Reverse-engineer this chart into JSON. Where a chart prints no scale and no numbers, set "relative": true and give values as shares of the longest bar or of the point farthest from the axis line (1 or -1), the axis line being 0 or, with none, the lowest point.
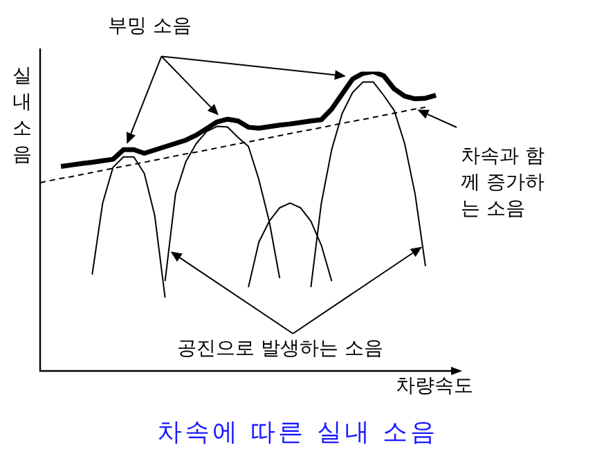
{
  "chart_data": {
    "type": "line",
    "title": "차속에 따른 실내 소음",
    "xlabel": "차량속도",
    "ylabel": "실내소음",
    "relative": true,
    "marker": "none",
    "annotations": [
      "부밍 소음",
      "차속과 함께 증가하는 소음",
      "공진으로 발생하는 소음"
    ],
    "categories": [
      null,
      null,
      null,
      null,
      null,
      null,
      null,
      null,
      null,
      null,
      null,
      null,
      null,
      null,
      null,
      null,
      null,
      null,
      null,
      null,
      null,
      null,
      null,
      null,
      null,
      null,
      null,
      null,
      null,
      null,
      null,
      null,
      null,
      null,
      null,
      null,
      null,
      null,
      null
    ],
    "series": [
      {
        "color": "#000000",
        "line_style": "solid",
        "values": [
          null,
          null,
          0.683,
          0.688,
          0.693,
          0.697,
          0.702,
          0.707,
          0.739,
          0.739,
          0.727,
          0.738,
          0.749,
          0.76,
          0.771,
          0.788,
          0.81,
          0.832,
          0.841,
          0.835,
          0.814,
          0.811,
          0.816,
          0.821,
          0.825,
          0.83,
          0.835,
          0.839,
          0.875,
          0.925,
          0.975,
          0.994,
          1,
          0.986,
          0.942,
          0.918,
          0.909,
          0.911,
          0.921
        ]
      },
      {
        "color": "#000000",
        "line_style": "dashed",
        "values": [
          0.629,
          0.636,
          0.643,
          0.649,
          0.656,
          0.663,
          0.67,
          0.677,
          0.684,
          0.69,
          0.697,
          0.704,
          0.711,
          0.718,
          0.725,
          0.731,
          0.738,
          0.745,
          0.752,
          0.759,
          0.765,
          0.772,
          0.779,
          0.786,
          0.793,
          0.8,
          0.806,
          0.813,
          0.82,
          0.827,
          0.834,
          0.84,
          0.847,
          0.854,
          0.861,
          0.868,
          0.875,
          0.881,
          null
        ]
      },
      {
        "color": "#000000",
        "line_style": "solid",
        "values": [
          null,
          null,
          null,
          null,
          null,
          0.322,
          0.56,
          0.68,
          0.715,
          0.715,
          0.66,
          0.52,
          0.245,
          null,
          null,
          null,
          null,
          null,
          null,
          null,
          null,
          null,
          null,
          null,
          null,
          null,
          null,
          null,
          null,
          null,
          null,
          null,
          null,
          null,
          null,
          null,
          null,
          null,
          null
        ]
      },
      {
        "color": "#000000",
        "line_style": "solid",
        "values": [
          null,
          null,
          null,
          null,
          null,
          null,
          null,
          null,
          null,
          null,
          null,
          null,
          0.3,
          0.592,
          0.7,
          0.76,
          0.8,
          0.817,
          0.815,
          0.78,
          0.75,
          0.64,
          0.5,
          0.31,
          null,
          null,
          null,
          null,
          null,
          null,
          null,
          null,
          null,
          null,
          null,
          null,
          null,
          null,
          null
        ]
      },
      {
        "color": "#000000",
        "line_style": "solid",
        "values": [
          null,
          null,
          null,
          null,
          null,
          null,
          null,
          null,
          null,
          null,
          null,
          null,
          null,
          null,
          null,
          null,
          null,
          null,
          null,
          null,
          0.28,
          0.43,
          0.5,
          0.545,
          0.561,
          0.545,
          0.5,
          0.42,
          0.3,
          null,
          null,
          null,
          null,
          null,
          null,
          null,
          null,
          null,
          null
        ]
      },
      {
        "color": "#000000",
        "line_style": "solid",
        "values": [
          null,
          null,
          null,
          null,
          null,
          null,
          null,
          null,
          null,
          null,
          null,
          null,
          null,
          null,
          null,
          null,
          null,
          null,
          null,
          null,
          null,
          null,
          null,
          null,
          null,
          null,
          0.28,
          0.56,
          0.74,
          0.86,
          0.93,
          0.965,
          0.965,
          0.92,
          0.87,
          0.76,
          0.592,
          0.35,
          null
        ]
      }
    ]
  }
}
